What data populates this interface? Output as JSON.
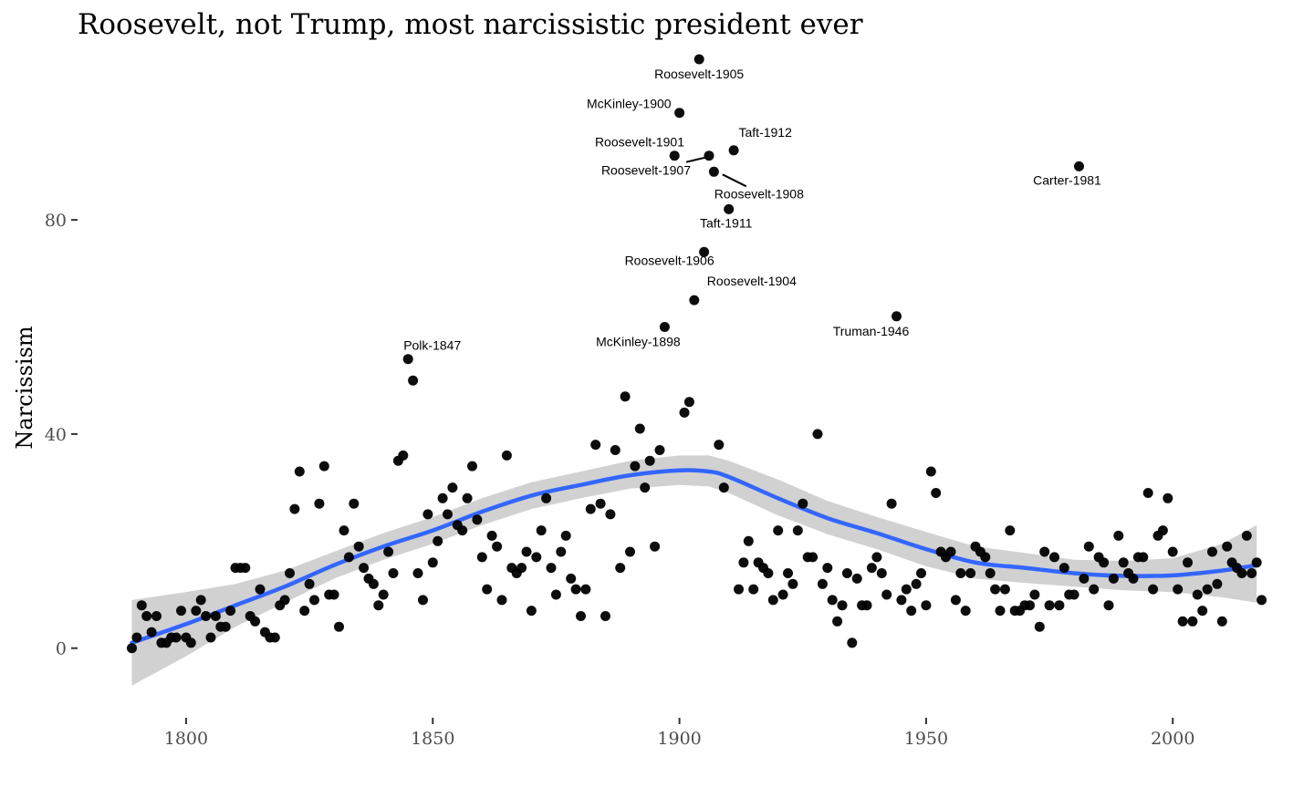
{
  "chart_data": {
    "type": "scatter",
    "title": "Roosevelt, not Trump, most narcissistic president ever",
    "xlabel": "",
    "ylabel": "Narcissism",
    "xlim": [
      1778,
      2024
    ],
    "ylim": [
      -13,
      110
    ],
    "x_ticks": [
      1800,
      1850,
      1900,
      1950,
      2000
    ],
    "y_ticks": [
      0,
      40,
      80
    ],
    "grid": false,
    "colors": {
      "points": "#000000",
      "smooth_line": "#3366FF",
      "ribbon": "#BEBEBE"
    },
    "points": [
      [
        1789,
        0
      ],
      [
        1790,
        2
      ],
      [
        1791,
        8
      ],
      [
        1792,
        6
      ],
      [
        1793,
        3
      ],
      [
        1794,
        6
      ],
      [
        1795,
        1
      ],
      [
        1796,
        1
      ],
      [
        1797,
        2
      ],
      [
        1798,
        2
      ],
      [
        1799,
        7
      ],
      [
        1800,
        2
      ],
      [
        1801,
        1
      ],
      [
        1802,
        7
      ],
      [
        1803,
        9
      ],
      [
        1804,
        6
      ],
      [
        1805,
        2
      ],
      [
        1806,
        6
      ],
      [
        1807,
        4
      ],
      [
        1808,
        4
      ],
      [
        1809,
        7
      ],
      [
        1810,
        15
      ],
      [
        1811,
        15
      ],
      [
        1812,
        15
      ],
      [
        1813,
        6
      ],
      [
        1814,
        5
      ],
      [
        1815,
        11
      ],
      [
        1816,
        3
      ],
      [
        1817,
        2
      ],
      [
        1818,
        2
      ],
      [
        1819,
        8
      ],
      [
        1820,
        9
      ],
      [
        1821,
        14
      ],
      [
        1822,
        26
      ],
      [
        1823,
        33
      ],
      [
        1824,
        7
      ],
      [
        1825,
        12
      ],
      [
        1826,
        9
      ],
      [
        1827,
        27
      ],
      [
        1828,
        34
      ],
      [
        1829,
        10
      ],
      [
        1830,
        10
      ],
      [
        1831,
        4
      ],
      [
        1832,
        22
      ],
      [
        1833,
        17
      ],
      [
        1834,
        27
      ],
      [
        1835,
        19
      ],
      [
        1836,
        15
      ],
      [
        1837,
        13
      ],
      [
        1838,
        12
      ],
      [
        1839,
        8
      ],
      [
        1840,
        10
      ],
      [
        1841,
        18
      ],
      [
        1842,
        14
      ],
      [
        1843,
        35
      ],
      [
        1844,
        36
      ],
      [
        1845,
        54
      ],
      [
        1846,
        50
      ],
      [
        1847,
        14
      ],
      [
        1848,
        9
      ],
      [
        1849,
        25
      ],
      [
        1850,
        16
      ],
      [
        1851,
        20
      ],
      [
        1852,
        28
      ],
      [
        1853,
        25
      ],
      [
        1854,
        30
      ],
      [
        1855,
        23
      ],
      [
        1856,
        22
      ],
      [
        1857,
        28
      ],
      [
        1858,
        34
      ],
      [
        1859,
        24
      ],
      [
        1860,
        17
      ],
      [
        1861,
        11
      ],
      [
        1862,
        21
      ],
      [
        1863,
        19
      ],
      [
        1864,
        9
      ],
      [
        1865,
        36
      ],
      [
        1866,
        15
      ],
      [
        1867,
        14
      ],
      [
        1868,
        15
      ],
      [
        1869,
        18
      ],
      [
        1870,
        7
      ],
      [
        1871,
        17
      ],
      [
        1872,
        22
      ],
      [
        1873,
        28
      ],
      [
        1874,
        15
      ],
      [
        1875,
        10
      ],
      [
        1876,
        18
      ],
      [
        1877,
        21
      ],
      [
        1878,
        13
      ],
      [
        1879,
        11
      ],
      [
        1880,
        6
      ],
      [
        1881,
        11
      ],
      [
        1882,
        26
      ],
      [
        1883,
        38
      ],
      [
        1884,
        27
      ],
      [
        1885,
        6
      ],
      [
        1886,
        25
      ],
      [
        1887,
        37
      ],
      [
        1888,
        15
      ],
      [
        1889,
        47
      ],
      [
        1890,
        18
      ],
      [
        1891,
        34
      ],
      [
        1892,
        41
      ],
      [
        1893,
        30
      ],
      [
        1894,
        35
      ],
      [
        1895,
        19
      ],
      [
        1896,
        37
      ],
      [
        1897,
        60
      ],
      [
        1899,
        92
      ],
      [
        1900,
        100
      ],
      [
        1901,
        44
      ],
      [
        1902,
        46
      ],
      [
        1903,
        65
      ],
      [
        1904,
        110
      ],
      [
        1905,
        74
      ],
      [
        1906,
        92
      ],
      [
        1907,
        89
      ],
      [
        1908,
        38
      ],
      [
        1909,
        30
      ],
      [
        1910,
        82
      ],
      [
        1911,
        93
      ],
      [
        1912,
        11
      ],
      [
        1913,
        16
      ],
      [
        1914,
        20
      ],
      [
        1915,
        11
      ],
      [
        1916,
        16
      ],
      [
        1917,
        15
      ],
      [
        1918,
        14
      ],
      [
        1919,
        9
      ],
      [
        1920,
        22
      ],
      [
        1921,
        10
      ],
      [
        1922,
        14
      ],
      [
        1923,
        12
      ],
      [
        1924,
        22
      ],
      [
        1925,
        27
      ],
      [
        1926,
        17
      ],
      [
        1927,
        17
      ],
      [
        1928,
        40
      ],
      [
        1929,
        12
      ],
      [
        1930,
        15
      ],
      [
        1931,
        9
      ],
      [
        1932,
        5
      ],
      [
        1933,
        8
      ],
      [
        1934,
        14
      ],
      [
        1935,
        1
      ],
      [
        1936,
        13
      ],
      [
        1937,
        8
      ],
      [
        1938,
        8
      ],
      [
        1939,
        15
      ],
      [
        1940,
        17
      ],
      [
        1941,
        14
      ],
      [
        1942,
        10
      ],
      [
        1943,
        27
      ],
      [
        1944,
        62
      ],
      [
        1945,
        9
      ],
      [
        1946,
        11
      ],
      [
        1947,
        7
      ],
      [
        1948,
        12
      ],
      [
        1949,
        14
      ],
      [
        1950,
        8
      ],
      [
        1951,
        33
      ],
      [
        1952,
        29
      ],
      [
        1953,
        18
      ],
      [
        1954,
        17
      ],
      [
        1955,
        18
      ],
      [
        1956,
        9
      ],
      [
        1957,
        14
      ],
      [
        1958,
        7
      ],
      [
        1959,
        14
      ],
      [
        1960,
        19
      ],
      [
        1961,
        18
      ],
      [
        1962,
        17
      ],
      [
        1963,
        14
      ],
      [
        1964,
        11
      ],
      [
        1965,
        7
      ],
      [
        1966,
        11
      ],
      [
        1967,
        22
      ],
      [
        1968,
        7
      ],
      [
        1969,
        7
      ],
      [
        1970,
        8
      ],
      [
        1971,
        8
      ],
      [
        1972,
        10
      ],
      [
        1973,
        4
      ],
      [
        1974,
        18
      ],
      [
        1975,
        8
      ],
      [
        1976,
        17
      ],
      [
        1977,
        8
      ],
      [
        1978,
        15
      ],
      [
        1979,
        10
      ],
      [
        1980,
        10
      ],
      [
        1981,
        90
      ],
      [
        1982,
        13
      ],
      [
        1983,
        19
      ],
      [
        1984,
        11
      ],
      [
        1985,
        17
      ],
      [
        1986,
        16
      ],
      [
        1987,
        8
      ],
      [
        1988,
        13
      ],
      [
        1989,
        21
      ],
      [
        1990,
        16
      ],
      [
        1991,
        14
      ],
      [
        1992,
        13
      ],
      [
        1993,
        17
      ],
      [
        1994,
        17
      ],
      [
        1995,
        29
      ],
      [
        1996,
        11
      ],
      [
        1997,
        21
      ],
      [
        1998,
        22
      ],
      [
        1999,
        28
      ],
      [
        2000,
        18
      ],
      [
        2001,
        11
      ],
      [
        2002,
        5
      ],
      [
        2003,
        16
      ],
      [
        2004,
        5
      ],
      [
        2005,
        10
      ],
      [
        2006,
        7
      ],
      [
        2007,
        11
      ],
      [
        2008,
        18
      ],
      [
        2009,
        12
      ],
      [
        2010,
        5
      ],
      [
        2011,
        19
      ],
      [
        2012,
        16
      ],
      [
        2013,
        15
      ],
      [
        2014,
        14
      ],
      [
        2015,
        21
      ],
      [
        2016,
        14
      ],
      [
        2017,
        16
      ],
      [
        2018,
        9
      ]
    ],
    "smooth": {
      "x": [
        1789,
        1800,
        1810,
        1820,
        1830,
        1840,
        1850,
        1860,
        1870,
        1880,
        1890,
        1900,
        1906,
        1910,
        1920,
        1930,
        1940,
        1950,
        1960,
        1970,
        1980,
        1990,
        2000,
        2010,
        2017
      ],
      "y": [
        1,
        4.5,
        8,
        11.5,
        15.5,
        19,
        22,
        25.5,
        28.5,
        30.5,
        32.3,
        33.2,
        33,
        32,
        28,
        24.3,
        21.5,
        18.5,
        16,
        15,
        14,
        13.5,
        13.6,
        14.5,
        15.5
      ],
      "lower": [
        -7,
        -1.5,
        4,
        8.5,
        13,
        16.5,
        19.5,
        23,
        26,
        28,
        29.8,
        30.5,
        30.2,
        29,
        24.8,
        21.3,
        18.5,
        15.3,
        13,
        12.2,
        11.5,
        10.8,
        10.5,
        9.5,
        8.5
      ],
      "upper": [
        9,
        10.5,
        12,
        14.5,
        18,
        21.5,
        24.5,
        28,
        31,
        33,
        35,
        36,
        36,
        35,
        31.5,
        27.5,
        24.5,
        21.7,
        19,
        17.8,
        16.5,
        16.3,
        16.8,
        19.5,
        23
      ]
    },
    "annotations": [
      {
        "label": "Roosevelt-1905",
        "x": 1904,
        "y": 110
      },
      {
        "label": "McKinley-1900",
        "x": 1900,
        "y": 100
      },
      {
        "label": "Roosevelt-1901",
        "x": 1901,
        "y": 92
      },
      {
        "label": "Taft-1912",
        "x": 1912,
        "y": 93
      },
      {
        "label": "Roosevelt-1907",
        "x": 1906,
        "y": 92
      },
      {
        "label": "Roosevelt-1908",
        "x": 1908,
        "y": 89
      },
      {
        "label": "Carter-1981",
        "x": 1981,
        "y": 90
      },
      {
        "label": "Taft-1911",
        "x": 1910,
        "y": 82
      },
      {
        "label": "Roosevelt-1906",
        "x": 1905,
        "y": 74
      },
      {
        "label": "Roosevelt-1904",
        "x": 1903,
        "y": 65
      },
      {
        "label": "McKinley-1898",
        "x": 1897,
        "y": 60
      },
      {
        "label": "Truman-1946",
        "x": 1944,
        "y": 62
      },
      {
        "label": "Polk-1847",
        "x": 1845,
        "y": 54
      }
    ]
  }
}
